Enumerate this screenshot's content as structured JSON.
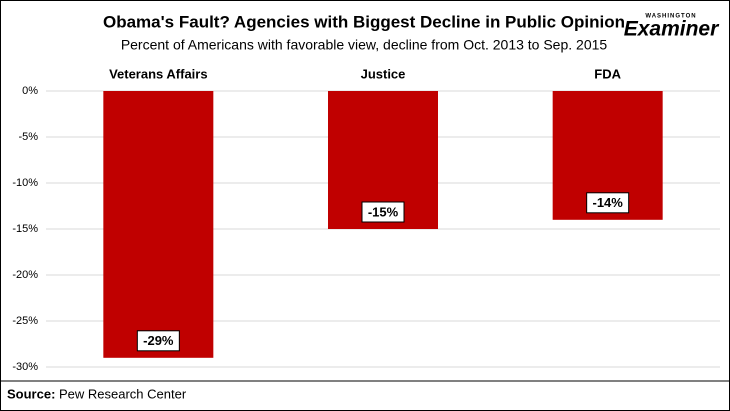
{
  "chart_data": {
    "type": "bar",
    "title": "Obama's Fault? Agencies with Biggest Decline in Public Opinion",
    "subtitle": "Percent of Americans with favorable view, decline from Oct. 2013 to Sep. 2015",
    "categories": [
      "Veterans Affairs",
      "Justice",
      "FDA"
    ],
    "values": [
      -29,
      -15,
      -14
    ],
    "value_labels": [
      "-29%",
      "-15%",
      "-14%"
    ],
    "color": "#c00000",
    "ylim": [
      -30,
      0
    ],
    "yticks": [
      {
        "value": 0,
        "label": "0%"
      },
      {
        "value": -5,
        "label": "-5%"
      },
      {
        "value": -10,
        "label": "-10%"
      },
      {
        "value": -15,
        "label": "-15%"
      },
      {
        "value": -20,
        "label": "-20%"
      },
      {
        "value": -25,
        "label": "-25%"
      },
      {
        "value": -30,
        "label": "-30%"
      }
    ],
    "grid": true,
    "source": {
      "label": "Source:",
      "text": "Pew Research Center"
    },
    "logo": {
      "top": "WASHINGTON",
      "name": "Examiner"
    }
  }
}
